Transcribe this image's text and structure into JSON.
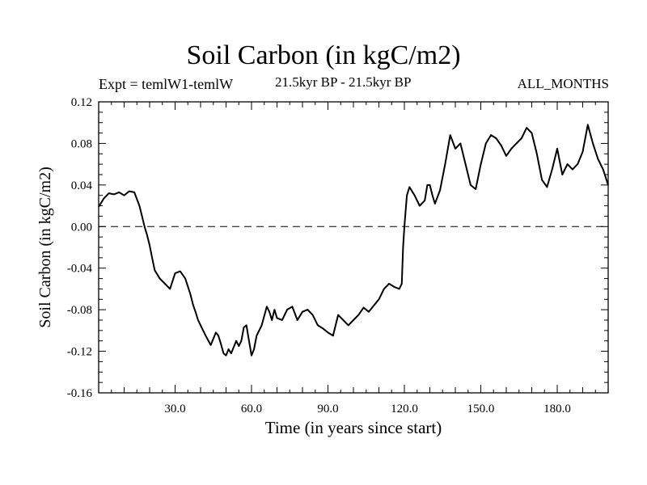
{
  "chart_data": {
    "type": "line",
    "title": "Soil Carbon (in kgC/m2)",
    "subtitle_left": "Expt = temlW1-temlW",
    "subtitle_center": "21.5kyr BP - 21.5kyr BP",
    "subtitle_right": "ALL_MONTHS",
    "xlabel": "Time (in years since start)",
    "ylabel": "Soil Carbon (in kgC/m2)",
    "xlim": [
      0,
      200
    ],
    "ylim": [
      -0.16,
      0.12
    ],
    "xticks": [
      30,
      60,
      90,
      120,
      150,
      180
    ],
    "xtick_labels": [
      "30.0",
      "60.0",
      "90.0",
      "120.0",
      "150.0",
      "180.0"
    ],
    "yticks": [
      -0.16,
      -0.12,
      -0.08,
      -0.04,
      0.0,
      0.04,
      0.08,
      0.12
    ],
    "ytick_labels": [
      "-0.16",
      "-0.12",
      "-0.08",
      "-0.04",
      "0.00",
      "0.04",
      "0.08",
      "0.12"
    ],
    "reference_line": {
      "y": 0.0,
      "style": "dashed"
    },
    "series": [
      {
        "x": [
          0,
          2,
          4,
          6,
          8,
          10,
          12,
          14,
          16,
          17,
          18,
          19,
          20,
          21,
          22,
          24,
          26,
          28,
          30,
          32,
          34,
          36,
          37,
          38,
          39,
          40,
          42,
          44,
          46,
          47,
          48,
          49,
          50,
          51,
          52,
          54,
          55,
          56,
          57,
          58,
          59,
          60,
          61,
          62,
          64,
          66,
          67,
          68,
          69,
          70,
          72,
          74,
          76,
          78,
          80,
          82,
          84,
          86,
          88,
          90,
          92,
          94,
          96,
          98,
          100,
          102,
          104,
          106,
          108,
          110,
          112,
          114,
          116,
          118,
          119,
          119.5,
          120,
          121,
          122,
          124,
          126,
          128,
          129,
          130,
          131,
          132,
          134,
          136,
          138,
          140,
          142,
          144,
          146,
          148,
          150,
          152,
          154,
          156,
          158,
          160,
          162,
          164,
          166,
          168,
          170,
          172,
          174,
          176,
          178,
          180,
          182,
          184,
          186,
          188,
          190,
          192,
          194,
          196,
          198,
          200
        ],
        "y": [
          0.019,
          0.027,
          0.032,
          0.031,
          0.033,
          0.03,
          0.034,
          0.033,
          0.02,
          0.01,
          0.0,
          -0.008,
          -0.018,
          -0.03,
          -0.042,
          -0.05,
          -0.055,
          -0.06,
          -0.045,
          -0.043,
          -0.05,
          -0.065,
          -0.075,
          -0.082,
          -0.09,
          -0.095,
          -0.105,
          -0.114,
          -0.102,
          -0.105,
          -0.113,
          -0.122,
          -0.124,
          -0.118,
          -0.122,
          -0.11,
          -0.115,
          -0.11,
          -0.097,
          -0.095,
          -0.11,
          -0.124,
          -0.118,
          -0.105,
          -0.095,
          -0.077,
          -0.082,
          -0.09,
          -0.08,
          -0.088,
          -0.09,
          -0.08,
          -0.077,
          -0.09,
          -0.082,
          -0.08,
          -0.085,
          -0.095,
          -0.098,
          -0.102,
          -0.105,
          -0.085,
          -0.09,
          -0.095,
          -0.09,
          -0.085,
          -0.078,
          -0.082,
          -0.076,
          -0.07,
          -0.06,
          -0.055,
          -0.058,
          -0.06,
          -0.055,
          -0.02,
          0.0,
          0.03,
          0.038,
          0.03,
          0.02,
          0.025,
          0.04,
          0.04,
          0.03,
          0.022,
          0.035,
          0.06,
          0.088,
          0.075,
          0.08,
          0.06,
          0.04,
          0.036,
          0.06,
          0.08,
          0.088,
          0.085,
          0.078,
          0.068,
          0.075,
          0.08,
          0.085,
          0.095,
          0.09,
          0.07,
          0.045,
          0.038,
          0.055,
          0.075,
          0.05,
          0.06,
          0.055,
          0.06,
          0.072,
          0.098,
          0.08,
          0.065,
          0.055,
          0.04
        ]
      }
    ]
  }
}
